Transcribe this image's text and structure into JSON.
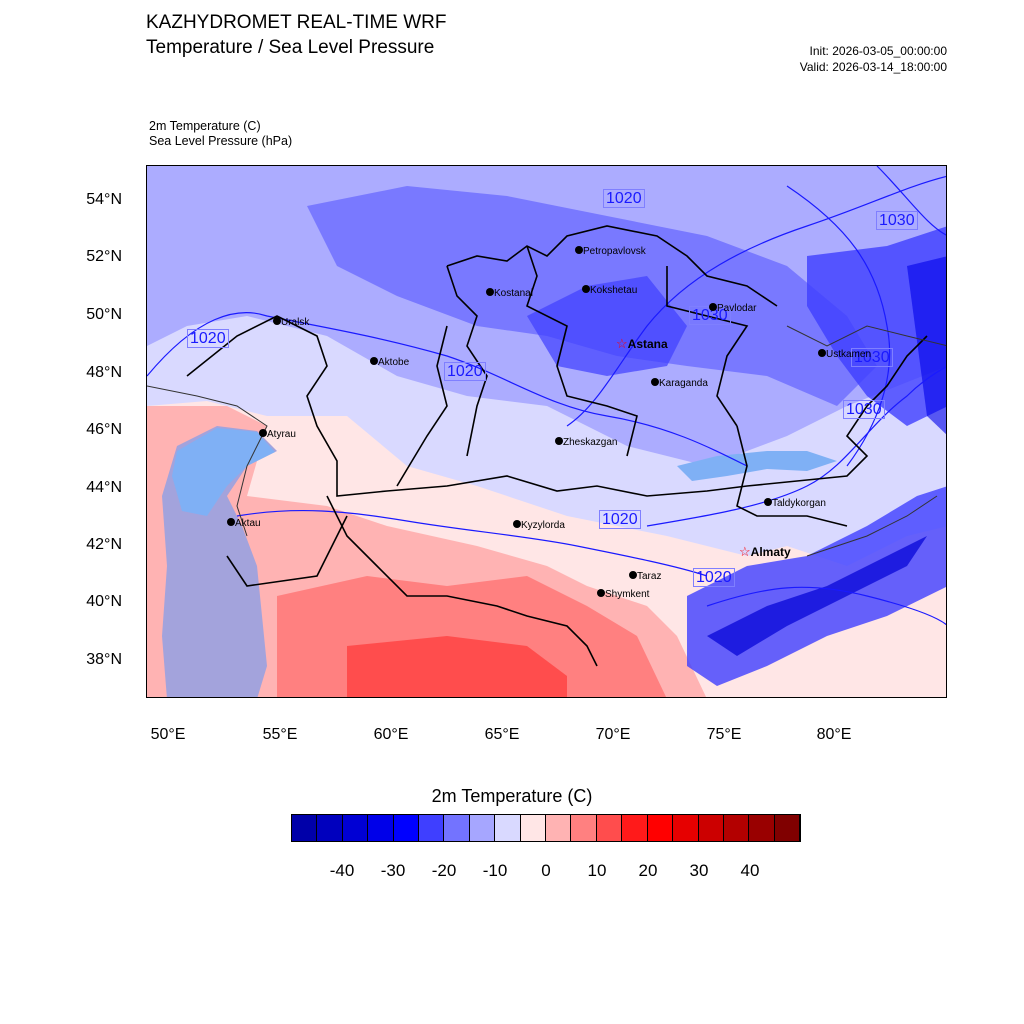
{
  "header": {
    "title_line1": "KAZHYDROMET REAL-TIME WRF",
    "title_line2": "Temperature / Sea Level Pressure",
    "init": "Init: 2026-03-05_00:00:00",
    "valid": "Valid: 2026-03-14_18:00:00",
    "field1": "2m Temperature   (C)",
    "field2": "Sea Level Pressure   (hPa)"
  },
  "axes": {
    "lat_labels": [
      "54°N",
      "52°N",
      "50°N",
      "48°N",
      "46°N",
      "44°N",
      "42°N",
      "40°N",
      "38°N"
    ],
    "lon_labels": [
      "50°E",
      "55°E",
      "60°E",
      "65°E",
      "70°E",
      "75°E",
      "80°E"
    ]
  },
  "cities": [
    {
      "name": "Petropavlovsk"
    },
    {
      "name": "Kostanai"
    },
    {
      "name": "Kokshetau"
    },
    {
      "name": "Pavlodar"
    },
    {
      "name": "Uralsk"
    },
    {
      "name": "Aktobe"
    },
    {
      "name": "Astana"
    },
    {
      "name": "Ustkamen"
    },
    {
      "name": "Karaganda"
    },
    {
      "name": "Atyrau"
    },
    {
      "name": "Zheskazgan"
    },
    {
      "name": "Taldykorgan"
    },
    {
      "name": "Aktau"
    },
    {
      "name": "Kyzylorda"
    },
    {
      "name": "Almaty"
    },
    {
      "name": "Taraz"
    },
    {
      "name": "Shymkent"
    }
  ],
  "isobar_labels": [
    "1020",
    "1030",
    "1020",
    "1030",
    "1020",
    "1030",
    "1030",
    "1020",
    "1020"
  ],
  "colorbar": {
    "title": "2m Temperature  (C)",
    "colors": [
      "#00007f",
      "#000094",
      "#0000a9",
      "#0000be",
      "#0000d4",
      "#0000e9",
      "#0000ff",
      "#3f3fff",
      "#7373ff",
      "#a6a6ff",
      "#d9d9ff",
      "#ffe6e6",
      "#ffb3b3",
      "#ff8080",
      "#ff4d4d",
      "#ff1a1a",
      "#ff0000",
      "#e60000",
      "#cc0000",
      "#b30000",
      "#990000",
      "#800000"
    ],
    "labels": [
      "-40",
      "-30",
      "-20",
      "-10",
      "0",
      "10",
      "20",
      "30",
      "40"
    ]
  }
}
